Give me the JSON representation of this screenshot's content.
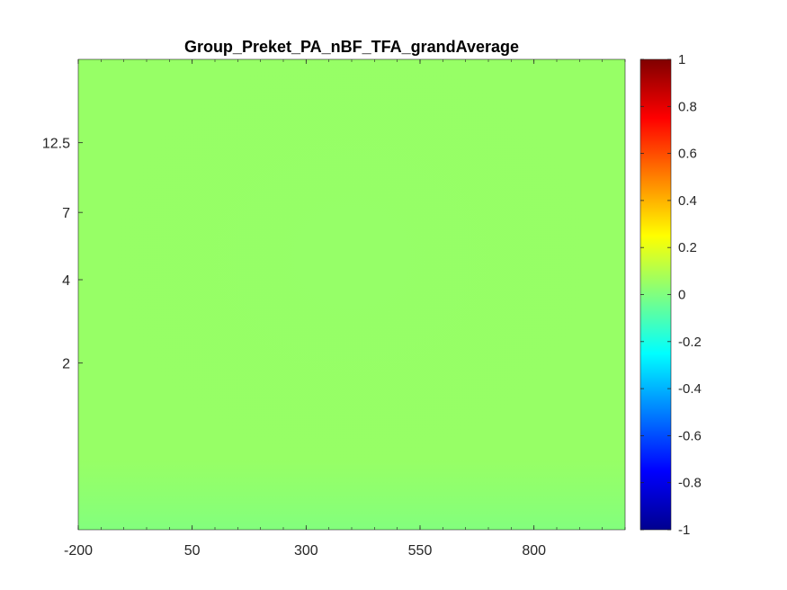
{
  "chart_data": {
    "type": "heatmap",
    "title": "Group_Preket_PA_nBF_TFA_grandAverage",
    "xlabel": "",
    "ylabel": "",
    "x_ticks": [
      -200,
      50,
      300,
      550,
      800
    ],
    "x_tick_labels": [
      "-200",
      "50",
      "300",
      "550",
      "800"
    ],
    "xlim": [
      -200,
      1000
    ],
    "y_scale": "log",
    "y_ticks": [
      2,
      4,
      7,
      12.5
    ],
    "y_tick_labels": [
      "2",
      "4",
      "7",
      "12.5"
    ],
    "ylim": [
      0.5,
      25
    ],
    "colorbar": {
      "colormap": "jet",
      "clim": [
        -1,
        1
      ],
      "ticks": [
        -1,
        -0.8,
        -0.6,
        -0.4,
        -0.2,
        0,
        0.2,
        0.4,
        0.6,
        0.8,
        1
      ],
      "tick_labels": [
        "-1",
        "-0.8",
        "-0.6",
        "-0.4",
        "-0.2",
        "0",
        "0.2",
        "0.4",
        "0.6",
        "0.8",
        "1"
      ]
    },
    "values_summary": "near 0 everywhere (approximately 0.05 to 0.15)",
    "grid": false
  }
}
